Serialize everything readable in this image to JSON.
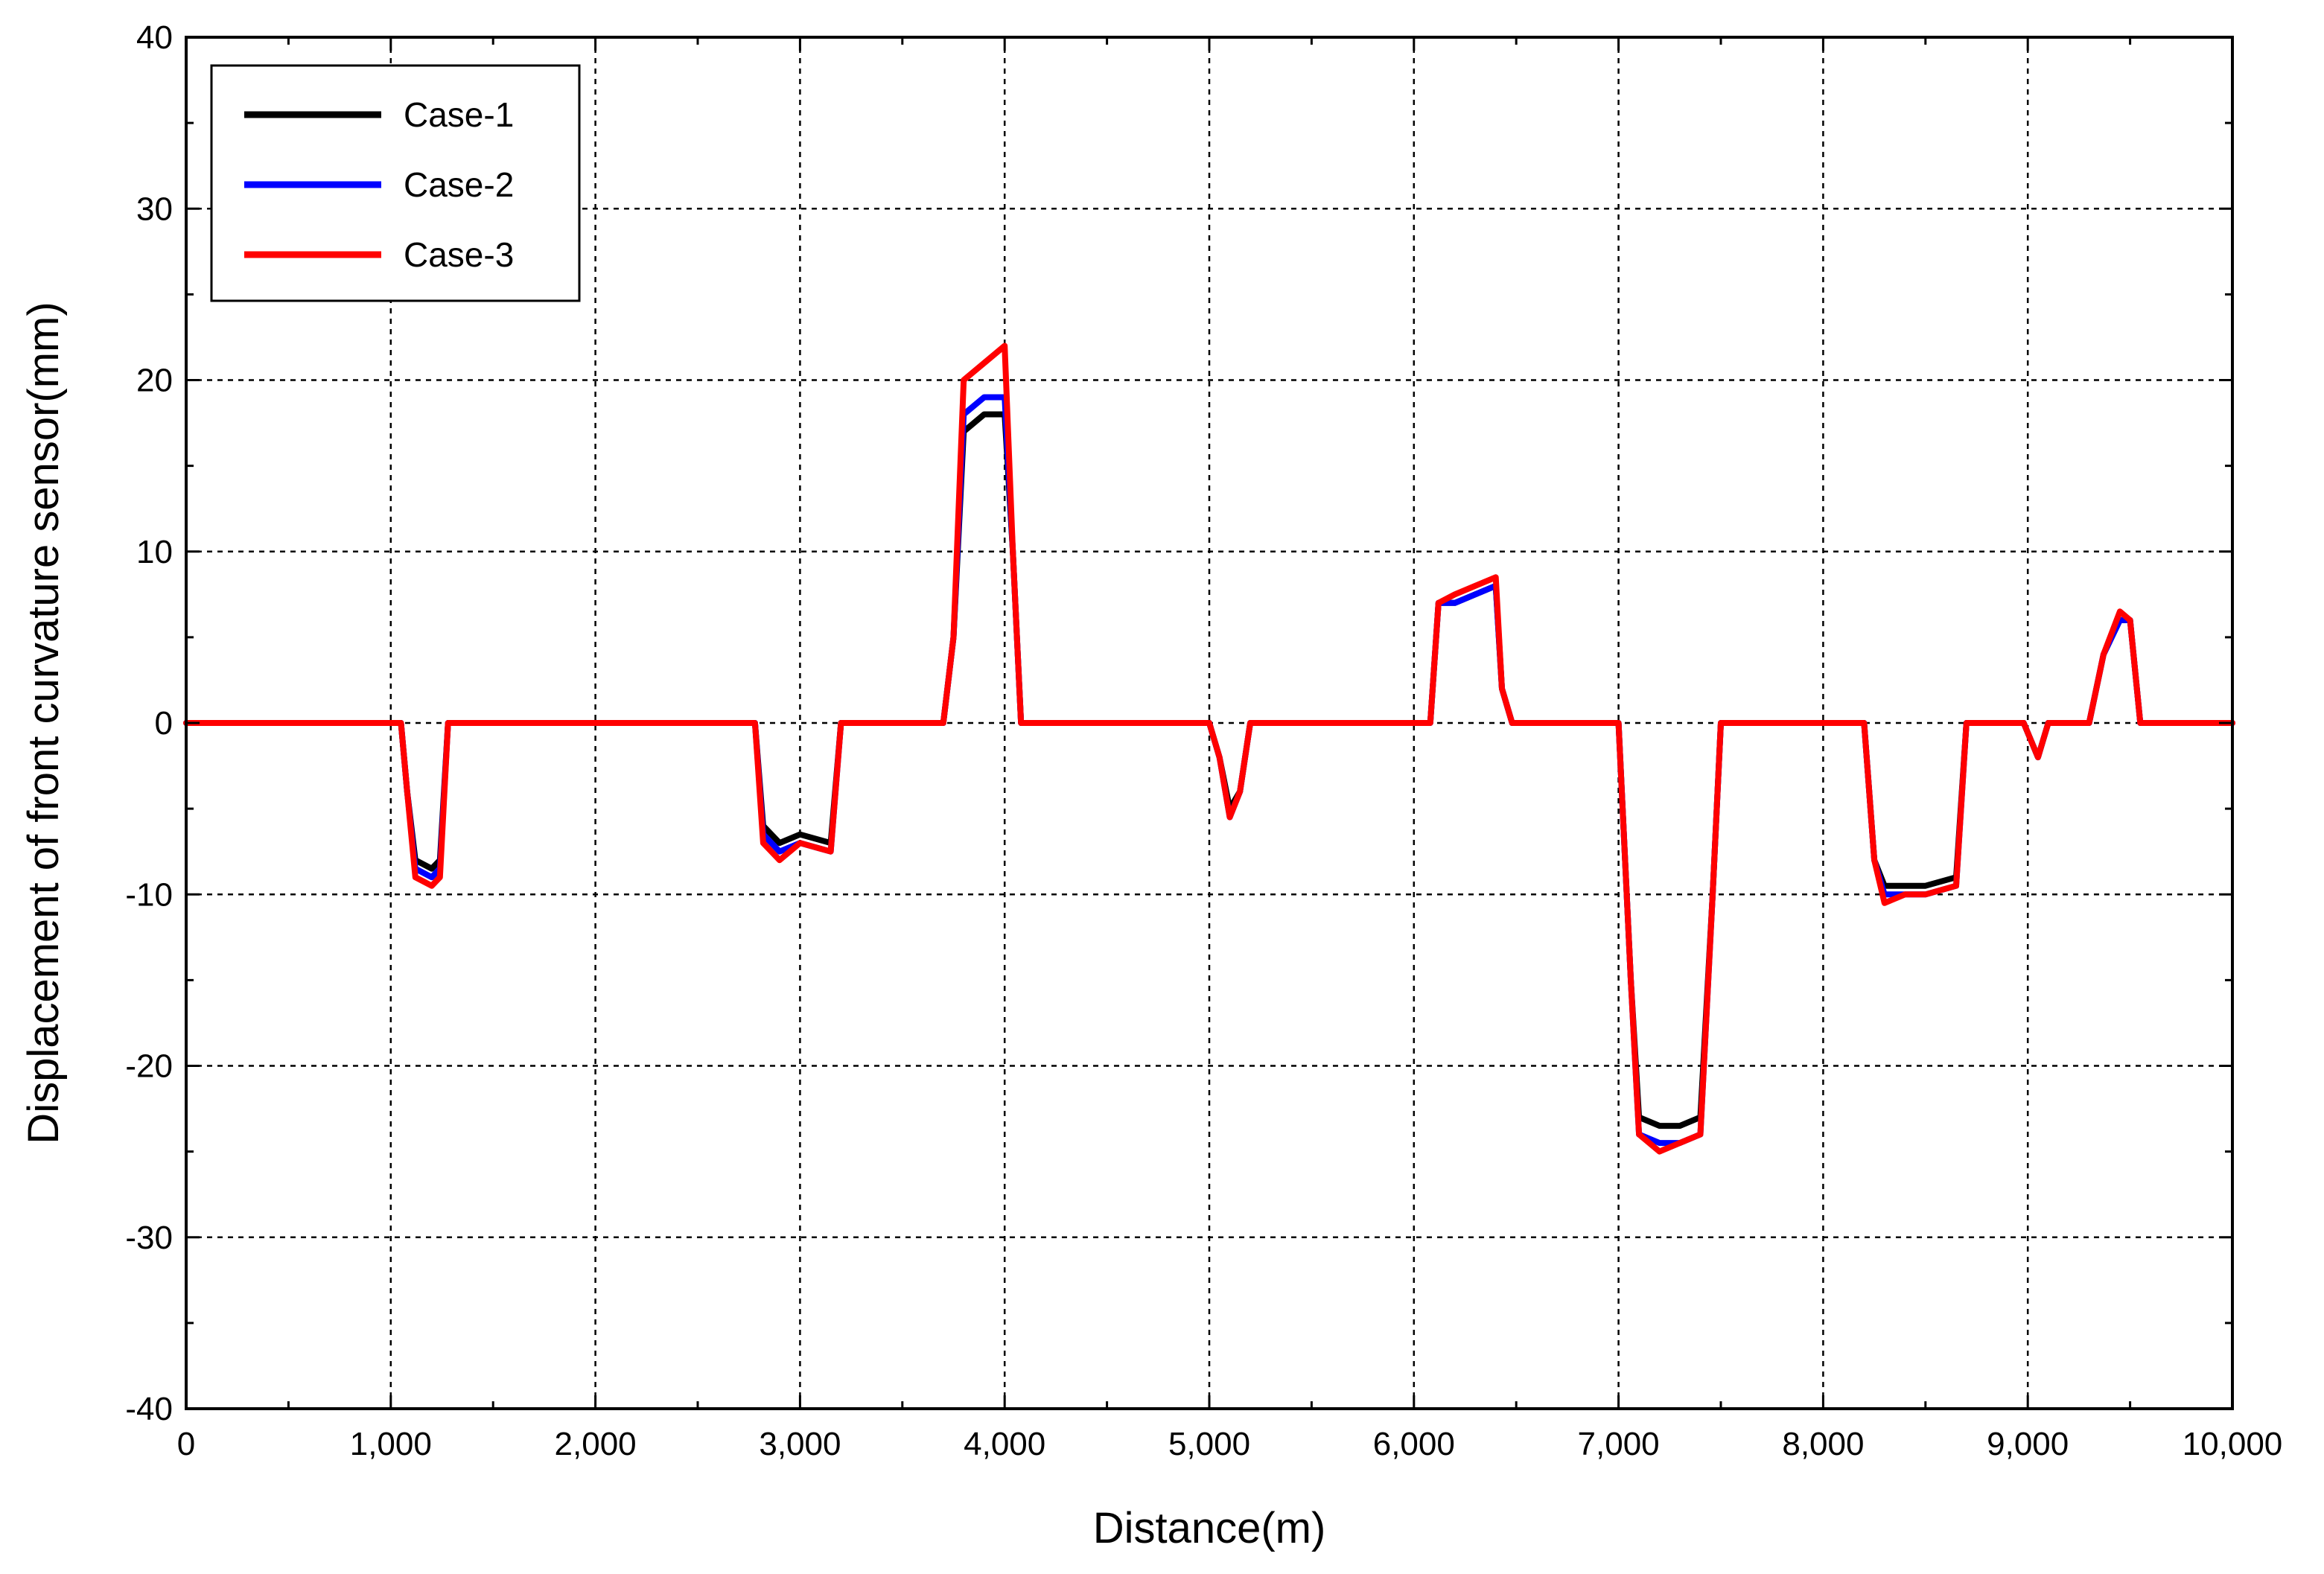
{
  "chart_data": {
    "type": "line",
    "title": "",
    "xlabel": "Distance(m)",
    "ylabel": "Displacement of front curvature sensor(mm)",
    "xlim": [
      0,
      10000
    ],
    "ylim": [
      -40,
      40
    ],
    "x_ticks": [
      "0",
      "1,000",
      "2,000",
      "3,000",
      "4,000",
      "5,000",
      "6,000",
      "7,000",
      "8,000",
      "9,000",
      "10,000"
    ],
    "y_ticks": [
      "40",
      "30",
      "20",
      "10",
      "0",
      "-10",
      "-20",
      "-30",
      "-40"
    ],
    "grid": true,
    "legend_position": "top-left",
    "series": [
      {
        "name": "Case-1",
        "color": "#000000",
        "x": [
          0,
          1050,
          1080,
          1120,
          1200,
          1240,
          1280,
          2780,
          2820,
          2900,
          3000,
          3150,
          3200,
          3700,
          3750,
          3800,
          3900,
          4000,
          4040,
          4080,
          4100,
          5000,
          5050,
          5100,
          5150,
          5200,
          6080,
          6120,
          6200,
          6300,
          6400,
          6430,
          6480,
          7000,
          7060,
          7100,
          7200,
          7300,
          7400,
          7460,
          7500,
          8200,
          8250,
          8300,
          8400,
          8500,
          8650,
          8700,
          8980,
          9050,
          9100,
          9300,
          9370,
          9450,
          9500,
          9550,
          10000
        ],
        "y": [
          0,
          0,
          -4,
          -8,
          -8.5,
          -8,
          0,
          0,
          -6,
          -7,
          -6.5,
          -7,
          0,
          0,
          5,
          17,
          18,
          18,
          10,
          0,
          0,
          0,
          -2,
          -5,
          -4,
          0,
          0,
          7,
          7,
          7.5,
          8,
          2,
          0,
          0,
          -15,
          -23,
          -23.5,
          -23.5,
          -23,
          -10,
          0,
          0,
          -8,
          -9.5,
          -9.5,
          -9.5,
          -9,
          0,
          0,
          -2,
          0,
          0,
          4,
          6,
          6,
          0,
          0
        ]
      },
      {
        "name": "Case-2",
        "color": "#0000ff",
        "x": [
          0,
          1050,
          1080,
          1120,
          1200,
          1240,
          1280,
          2780,
          2820,
          2900,
          3000,
          3150,
          3200,
          3700,
          3750,
          3800,
          3900,
          4000,
          4040,
          4080,
          4100,
          5000,
          5050,
          5100,
          5150,
          5200,
          6080,
          6120,
          6200,
          6300,
          6400,
          6430,
          6480,
          7000,
          7060,
          7100,
          7200,
          7300,
          7400,
          7460,
          7500,
          8200,
          8250,
          8300,
          8400,
          8500,
          8650,
          8700,
          8980,
          9050,
          9100,
          9300,
          9370,
          9450,
          9500,
          9550,
          10000
        ],
        "y": [
          0,
          0,
          -4,
          -8.5,
          -9,
          -8.5,
          0,
          0,
          -6.5,
          -7.5,
          -7,
          -7.5,
          0,
          0,
          5,
          18,
          19,
          19,
          10,
          0,
          0,
          0,
          -2,
          -5.5,
          -4,
          0,
          0,
          7,
          7,
          7.5,
          8,
          2,
          0,
          0,
          -15,
          -24,
          -24.5,
          -24.5,
          -24,
          -10,
          0,
          0,
          -8,
          -10,
          -10,
          -10,
          -9.5,
          0,
          0,
          -2,
          0,
          0,
          4,
          6,
          6,
          0,
          0
        ]
      },
      {
        "name": "Case-3",
        "color": "#ff0000",
        "x": [
          0,
          1050,
          1080,
          1120,
          1200,
          1240,
          1280,
          2780,
          2820,
          2900,
          3000,
          3150,
          3200,
          3700,
          3750,
          3800,
          3900,
          4000,
          4040,
          4080,
          4100,
          5000,
          5050,
          5100,
          5150,
          5200,
          6080,
          6120,
          6200,
          6300,
          6400,
          6430,
          6480,
          7000,
          7060,
          7100,
          7200,
          7300,
          7400,
          7460,
          7500,
          8200,
          8250,
          8300,
          8400,
          8500,
          8650,
          8700,
          8980,
          9050,
          9100,
          9300,
          9370,
          9450,
          9500,
          9550,
          10000
        ],
        "y": [
          0,
          0,
          -4,
          -9,
          -9.5,
          -9,
          0,
          0,
          -7,
          -8,
          -7,
          -7.5,
          0,
          0,
          5,
          20,
          21,
          22,
          10,
          0,
          0,
          0,
          -2,
          -5.5,
          -4,
          0,
          0,
          7,
          7.5,
          8,
          8.5,
          2,
          0,
          0,
          -15,
          -24,
          -25,
          -24.5,
          -24,
          -10,
          0,
          0,
          -8,
          -10.5,
          -10,
          -10,
          -9.5,
          0,
          0,
          -2,
          0,
          0,
          4,
          6.5,
          6,
          0,
          0
        ]
      }
    ]
  }
}
